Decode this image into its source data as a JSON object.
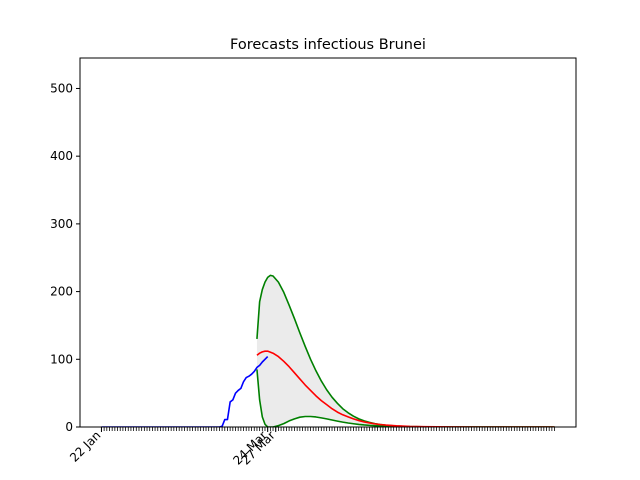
{
  "chart_data": {
    "type": "line",
    "title": "Forecasts infectious Brunei",
    "xlabel": "",
    "ylabel": "",
    "x_axis": {
      "unit": "days",
      "start_day": 0,
      "end_day": 169,
      "ticks": [
        {
          "day": 0,
          "label": "22 Jan"
        },
        {
          "day": 62,
          "label": "24 Mar"
        },
        {
          "day": 65,
          "label": "27 Mar"
        }
      ],
      "minor_tick_every_day": true
    },
    "ylim": [
      0,
      545
    ],
    "xlim": [
      -8,
      177
    ],
    "y_ticks": [
      0,
      100,
      200,
      300,
      400,
      500
    ],
    "grid": false,
    "legend": "none",
    "colors": {
      "observed": "#0000ff",
      "forecast": "#ff0000",
      "bounds": "#008000",
      "band": "#ebebeb"
    },
    "series": [
      {
        "x": [
          0,
          44,
          45,
          46,
          47,
          48,
          49,
          50,
          51,
          52,
          53,
          54,
          55,
          56,
          57,
          58,
          59,
          60,
          61,
          62
        ],
        "y": [
          0,
          0,
          1,
          11,
          11,
          37,
          40,
          50,
          54,
          57,
          67,
          73,
          75,
          78,
          82,
          88,
          91,
          96,
          100,
          104
        ],
        "color": "#0000ff"
      },
      {
        "x": [
          58,
          59,
          60,
          61,
          62,
          64,
          66,
          68,
          70,
          72,
          74,
          76,
          78,
          80,
          82,
          84,
          86,
          88,
          90,
          92,
          94,
          96,
          98,
          100,
          102,
          104,
          106,
          110,
          115,
          120,
          130,
          140,
          150,
          160,
          169
        ],
        "y": [
          106,
          109,
          111,
          112,
          112,
          109,
          104,
          97,
          89,
          80,
          71,
          62,
          54,
          46,
          39,
          33,
          27,
          22,
          18,
          15,
          12,
          9.5,
          7.5,
          6,
          4.6,
          3.6,
          2.8,
          1.7,
          0.8,
          0.4,
          0.1,
          0,
          0,
          0,
          0
        ],
        "color": "#ff0000"
      },
      {
        "x": [
          58,
          59,
          60,
          61,
          62,
          63,
          64,
          66,
          68,
          70,
          72,
          74,
          76,
          78,
          80,
          82,
          84,
          86,
          88,
          90,
          92,
          94,
          96,
          98,
          100,
          102,
          104,
          106,
          110,
          115,
          120,
          130,
          140,
          150,
          160,
          169
        ],
        "y": [
          130,
          185,
          203,
          214,
          221,
          224,
          223,
          214,
          199,
          180,
          160,
          139,
          119,
          100,
          83,
          68,
          55,
          44,
          35,
          27,
          21,
          16,
          12,
          9,
          6.8,
          5,
          3.7,
          2.7,
          1.4,
          0.6,
          0.3,
          0,
          0,
          0,
          0,
          0
        ],
        "color": "#008000"
      },
      {
        "x": [
          58,
          59,
          60,
          61,
          62,
          63,
          64,
          66,
          68,
          70,
          72,
          74,
          76,
          78,
          80,
          82,
          84,
          86,
          88,
          90,
          92,
          94,
          96,
          98,
          100,
          102,
          104,
          106,
          110,
          115,
          120,
          130,
          140,
          150,
          160,
          169
        ],
        "y": [
          85,
          40,
          15,
          4,
          0,
          0,
          0,
          2,
          5,
          9,
          12,
          14.5,
          15.5,
          15.5,
          14.8,
          13.5,
          12,
          10.3,
          8.7,
          7.2,
          5.9,
          4.8,
          3.8,
          3,
          2.4,
          1.9,
          1.5,
          1.1,
          0.6,
          0.3,
          0.15,
          0,
          0,
          0,
          0,
          0
        ],
        "color": "#008000"
      }
    ]
  }
}
